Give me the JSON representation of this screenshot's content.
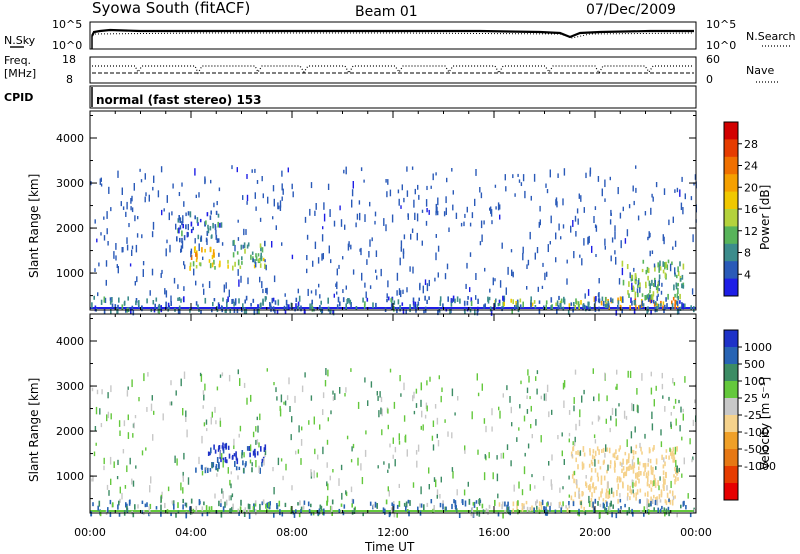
{
  "header": {
    "station": "Syowa South (fitACF)",
    "beam": "Beam 01",
    "date": "07/Dec/2009"
  },
  "top_panels": {
    "noise": {
      "left_label": "N.Sky",
      "left_ticks": [
        "10^5",
        "10^0"
      ],
      "right_ticks": [
        "10^5",
        "10^0"
      ],
      "right_label": "N.Search"
    },
    "freq": {
      "left_label": "Freq.",
      "left_unit": "[MHz]",
      "left_ticks": [
        "18",
        "8"
      ],
      "right_ticks": [
        "60",
        "0"
      ],
      "right_label": "Nave"
    },
    "cpid": {
      "label": "CPID",
      "text": "normal (fast stereo) 153"
    }
  },
  "chart_data": [
    {
      "type": "heatmap",
      "panel": "power",
      "ylabel": "Slant Range [km]",
      "xlabel": "",
      "ylim": [
        180,
        4600
      ],
      "xlim_hours": [
        0,
        24
      ],
      "y_ticks": [
        1000,
        2000,
        3000,
        4000
      ],
      "colorbar": {
        "label": "Power [dB]",
        "ticks": [
          "4",
          "8",
          "12",
          "16",
          "20",
          "24",
          "28"
        ],
        "range": [
          0,
          32
        ],
        "colors": [
          "#1e1ee6",
          "#2a5ab8",
          "#3c8c8c",
          "#58b45a",
          "#b4d23c",
          "#f0c800",
          "#f5a000",
          "#f07000",
          "#e63c00",
          "#d20000"
        ]
      },
      "regions": [
        {
          "t": [
            3.9,
            6.9
          ],
          "r": [
            1150,
            1350
          ],
          "value": 14
        },
        {
          "t": [
            3.8,
            5.0
          ],
          "r": [
            1400,
            1650
          ],
          "value": 20
        },
        {
          "t": [
            5.6,
            6.9
          ],
          "r": [
            1300,
            1750
          ],
          "value": 10
        },
        {
          "t": [
            3.4,
            5.2
          ],
          "r": [
            1750,
            2400
          ],
          "value": 6
        },
        {
          "t": [
            16.0,
            19.5
          ],
          "r": [
            280,
            450
          ],
          "value": 14
        },
        {
          "t": [
            19.7,
            23.3
          ],
          "r": [
            280,
            500
          ],
          "value": 22
        },
        {
          "t": [
            21.0,
            23.5
          ],
          "r": [
            500,
            1300
          ],
          "value": 12
        },
        {
          "t": [
            0.0,
            24.0
          ],
          "r": [
            180,
            500
          ],
          "value": 6
        }
      ]
    },
    {
      "type": "heatmap",
      "panel": "velocity",
      "ylabel": "Slant Range [km]",
      "xlabel": "Time UT",
      "ylim": [
        180,
        4600
      ],
      "xlim_hours": [
        0,
        24
      ],
      "y_ticks": [
        1000,
        2000,
        3000,
        4000
      ],
      "x_ticks": [
        "00:00",
        "04:00",
        "08:00",
        "12:00",
        "16:00",
        "20:00",
        "00:00"
      ],
      "colorbar": {
        "label": "Velocity [m s⁻¹]",
        "ticks": [
          "1000",
          "500",
          "100",
          "25",
          "-25",
          "-100",
          "-500",
          "-1000"
        ],
        "colors": [
          "#1e32c8",
          "#2864b4",
          "#3c8c64",
          "#64c83c",
          "#c8c8c8",
          "#f5d28c",
          "#f0a028",
          "#e67814",
          "#e63c00",
          "#e60000"
        ]
      },
      "regions": [
        {
          "t": [
            3.9,
            6.9
          ],
          "r": [
            1150,
            1350
          ],
          "value": 200
        },
        {
          "t": [
            4.5,
            7.0
          ],
          "r": [
            1350,
            1750
          ],
          "value": 600
        },
        {
          "t": [
            16.0,
            20.0
          ],
          "r": [
            280,
            450
          ],
          "value": -200
        },
        {
          "t": [
            19.0,
            23.3
          ],
          "r": [
            450,
            1700
          ],
          "value": -300
        },
        {
          "t": [
            0.0,
            24.0
          ],
          "r": [
            180,
            500
          ],
          "value": 80
        }
      ]
    }
  ]
}
